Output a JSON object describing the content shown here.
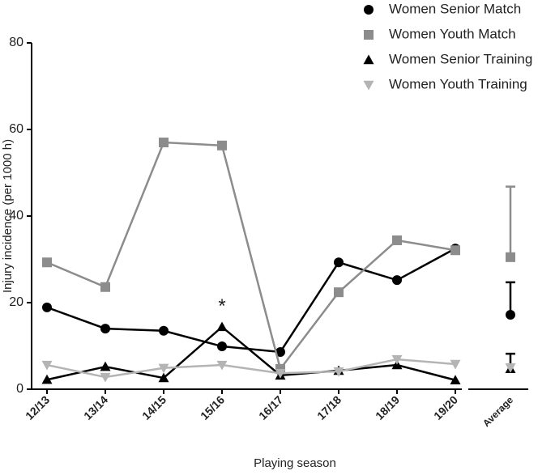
{
  "chart_data": {
    "type": "line",
    "y_label": "Injury incidence (per 1000 h)",
    "x_label": "Playing season",
    "categories": [
      "12/13",
      "13/14",
      "14/15",
      "15/16",
      "16/17",
      "17/18",
      "18/19",
      "19/20"
    ],
    "average_label": "Average",
    "annotation": "*",
    "ylim": [
      0,
      80
    ],
    "yticks": [
      0,
      20,
      40,
      60,
      80
    ],
    "series": [
      {
        "name": "Women Senior Match",
        "color": "#000000",
        "marker": "circle",
        "values": [
          18.9,
          14.0,
          13.5,
          9.9,
          8.6,
          29.3,
          25.2,
          32.5
        ],
        "average": 17.2,
        "average_error": 7.5
      },
      {
        "name": "Women Youth Match",
        "color": "#8c8c8c",
        "marker": "square",
        "values": [
          29.3,
          23.6,
          57.0,
          56.3,
          4.7,
          22.4,
          34.4,
          32.1
        ],
        "average": 30.5,
        "average_error": 16.3
      },
      {
        "name": "Women Senior Training",
        "color": "#000000",
        "marker": "triangle-up",
        "values": [
          2.2,
          5.2,
          2.6,
          14.4,
          3.2,
          4.3,
          5.6,
          2.1
        ],
        "average": 4.7,
        "average_error": 3.5
      },
      {
        "name": "Women Youth Training",
        "color": "#b4b4b4",
        "marker": "triangle-down",
        "values": [
          5.6,
          2.8,
          4.9,
          5.6,
          3.7,
          4.1,
          6.9,
          5.8
        ],
        "average": 5.0
      }
    ]
  }
}
